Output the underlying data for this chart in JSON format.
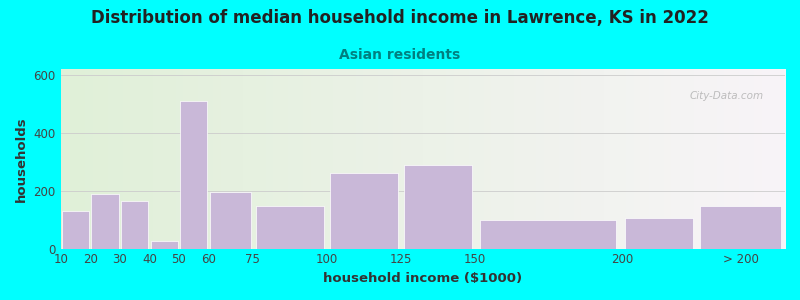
{
  "title": "Distribution of median household income in Lawrence, KS in 2022",
  "subtitle": "Asian residents",
  "xlabel": "household income ($1000)",
  "ylabel": "households",
  "tick_labels": [
    "10",
    "20",
    "30",
    "40",
    "50",
    "60",
    "75",
    "100",
    "125",
    "150",
    "200",
    "> 200"
  ],
  "tick_positions": [
    10,
    20,
    30,
    40,
    50,
    60,
    75,
    100,
    125,
    150,
    200,
    240
  ],
  "bar_lefts": [
    10,
    20,
    30,
    40,
    50,
    60,
    75,
    100,
    125,
    150,
    200,
    225
  ],
  "bar_widths": [
    10,
    10,
    10,
    10,
    10,
    15,
    25,
    25,
    25,
    50,
    25,
    30
  ],
  "bar_values": [
    130,
    190,
    165,
    25,
    510,
    195,
    148,
    260,
    290,
    97,
    105,
    148
  ],
  "bar_color": "#c9b8d8",
  "bar_edge_color": "#ffffff",
  "ylim": [
    0,
    620
  ],
  "yticks": [
    0,
    200,
    400,
    600
  ],
  "xlim": [
    10,
    255
  ],
  "background_color": "#00ffff",
  "watermark": "City-Data.com",
  "title_fontsize": 12,
  "subtitle_fontsize": 10,
  "axis_label_fontsize": 9.5,
  "tick_fontsize": 8.5,
  "title_color": "#222222",
  "subtitle_color": "#008080"
}
